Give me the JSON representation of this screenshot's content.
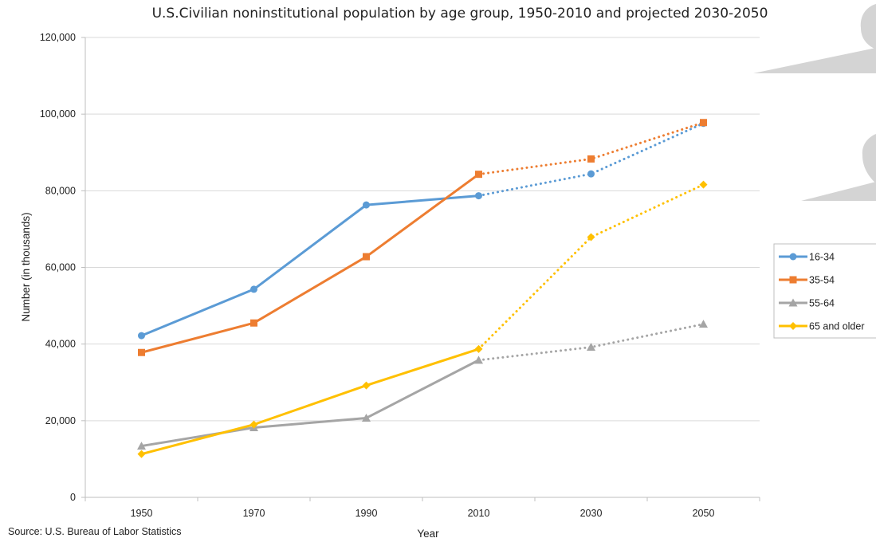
{
  "chart_data": {
    "type": "line",
    "title": "U.S.Civilian noninstitutional population by age group, 1950-2010 and projected 2030-2050",
    "xlabel": "Year",
    "ylabel": "Number (in thousands)",
    "categories": [
      "1950",
      "1970",
      "1990",
      "2010",
      "2030",
      "2050"
    ],
    "ylim": [
      0,
      120000
    ],
    "yticks": [
      0,
      20000,
      40000,
      60000,
      80000,
      100000,
      120000
    ],
    "ytick_labels": [
      "0",
      "20,000",
      "40,000",
      "60,000",
      "80,000",
      "100,000",
      "120,000"
    ],
    "grid": "horizontal",
    "legend_position": "right",
    "projected_from_index": 3,
    "series": [
      {
        "name": "16-34",
        "color": "#5B9BD5",
        "marker": "circle",
        "values": [
          42200,
          54300,
          76300,
          78700,
          84400,
          97600
        ]
      },
      {
        "name": "35-54",
        "color": "#ED7D31",
        "marker": "square",
        "values": [
          37800,
          45500,
          62800,
          84300,
          88300,
          97800
        ]
      },
      {
        "name": "55-64",
        "color": "#A5A5A5",
        "marker": "triangle",
        "values": [
          13400,
          18200,
          20700,
          35800,
          39200,
          45200
        ]
      },
      {
        "name": "65 and older",
        "color": "#FFC000",
        "marker": "diamond",
        "values": [
          11300,
          19000,
          29200,
          38700,
          67900,
          81600
        ]
      }
    ],
    "source": "Source: U.S. Bureau of Labor Statistics"
  }
}
